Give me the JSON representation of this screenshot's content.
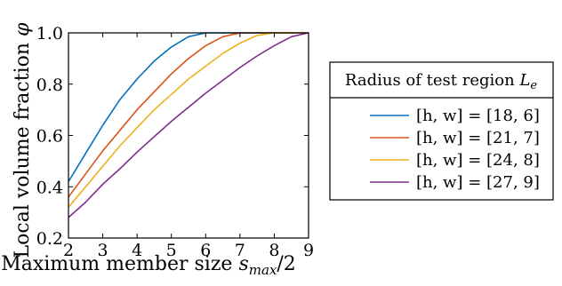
{
  "chart_data": {
    "type": "line",
    "xlabel": "Maximum member size s_max/2",
    "xlabel_parts": {
      "text": "Maximum member size ",
      "var": "s",
      "sub": "max",
      "suffix": "/2"
    },
    "ylabel": "Local volume fraction φ",
    "ylabel_parts": {
      "text": "Local volume fraction ",
      "var": "φ"
    },
    "xlim": [
      2,
      9
    ],
    "ylim": [
      0.2,
      1.0
    ],
    "xticks": [
      "2",
      "3",
      "4",
      "5",
      "6",
      "7",
      "8",
      "9"
    ],
    "yticks": [
      "0.2",
      "0.4",
      "0.6",
      "0.8",
      "1.0"
    ],
    "grid": false,
    "legend": {
      "title": "Radius of test region",
      "title_var": "L",
      "title_sub": "e",
      "placement": "right"
    },
    "series": [
      {
        "name": "[h, w] = [18, 6]",
        "label": "[h, w] = [18, 6]",
        "color": "#0072BD",
        "x": [
          2,
          2.5,
          3,
          3.5,
          4,
          4.5,
          5,
          5.5,
          6,
          7,
          8,
          9
        ],
        "y": [
          0.42,
          0.53,
          0.64,
          0.74,
          0.82,
          0.89,
          0.945,
          0.985,
          1.0,
          1.0,
          1.0,
          1.0
        ]
      },
      {
        "name": "[h, w] = [21, 7]",
        "label": "[h, w] = [21, 7]",
        "color": "#D95319",
        "x": [
          2,
          2.5,
          3,
          3.5,
          4,
          4.5,
          5,
          5.5,
          6,
          6.5,
          7,
          8,
          9
        ],
        "y": [
          0.36,
          0.45,
          0.54,
          0.62,
          0.7,
          0.77,
          0.84,
          0.9,
          0.95,
          0.985,
          1.0,
          1.0,
          1.0
        ]
      },
      {
        "name": "[h, w] = [24, 8]",
        "label": "[h, w] = [24, 8]",
        "color": "#EDB120",
        "x": [
          2,
          2.5,
          3,
          3.5,
          4,
          4.5,
          5,
          5.5,
          6,
          6.5,
          7,
          7.5,
          8,
          9
        ],
        "y": [
          0.32,
          0.4,
          0.48,
          0.56,
          0.63,
          0.7,
          0.76,
          0.82,
          0.87,
          0.92,
          0.96,
          0.99,
          1.0,
          1.0
        ]
      },
      {
        "name": "[h, w] = [27, 9]",
        "label": "[h, w] = [27, 9]",
        "color": "#7E2F8E",
        "x": [
          2,
          2.5,
          3,
          3.5,
          4,
          4.5,
          5,
          5.5,
          6,
          6.5,
          7,
          7.5,
          8,
          8.5,
          9
        ],
        "y": [
          0.28,
          0.34,
          0.41,
          0.47,
          0.535,
          0.595,
          0.655,
          0.71,
          0.765,
          0.815,
          0.865,
          0.91,
          0.95,
          0.985,
          1.0
        ]
      }
    ]
  }
}
